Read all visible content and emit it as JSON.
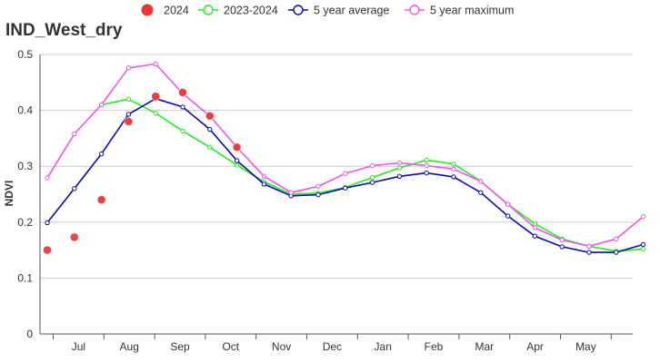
{
  "chart_data": {
    "type": "line",
    "title": "IND_West_dry",
    "ylabel": "NDVI",
    "xlabel": "",
    "ylim": [
      0,
      0.5
    ],
    "yticks": [
      "0",
      "0.1",
      "0.2",
      "0.3",
      "0.4",
      "0.5"
    ],
    "month_labels": [
      "Jul",
      "Aug",
      "Sep",
      "Oct",
      "Nov",
      "Dec",
      "Jan",
      "Feb",
      "Mar",
      "Apr",
      "May"
    ],
    "grid": true,
    "legend_position": "top",
    "series": [
      {
        "name": "2024",
        "style": "dots",
        "color": "#ee3333",
        "values": [
          0.15,
          0.173,
          0.24,
          0.38,
          0.425,
          0.432,
          0.39,
          0.334
        ]
      },
      {
        "name": "2023-2024",
        "style": "line",
        "color": "#22ee22",
        "values": [
          null,
          null,
          0.41,
          0.42,
          0.395,
          0.363,
          0.334,
          0.302,
          0.272,
          0.25,
          0.252,
          0.262,
          0.28,
          0.297,
          0.311,
          0.304,
          0.273,
          0.232,
          0.197,
          0.17,
          0.157,
          0.148,
          0.152
        ]
      },
      {
        "name": "5 year average",
        "style": "line",
        "color": "#0a0aa5",
        "values": [
          0.199,
          0.26,
          0.322,
          0.393,
          0.421,
          0.406,
          0.366,
          0.31,
          0.268,
          0.247,
          0.249,
          0.261,
          0.271,
          0.282,
          0.288,
          0.281,
          0.253,
          0.211,
          0.175,
          0.156,
          0.146,
          0.146,
          0.16
        ]
      },
      {
        "name": "5 year maximum",
        "style": "line",
        "color": "#ee55ee",
        "values": [
          0.279,
          0.358,
          0.41,
          0.476,
          0.483,
          0.43,
          0.39,
          0.334,
          0.282,
          0.253,
          0.264,
          0.287,
          0.301,
          0.306,
          0.301,
          0.295,
          0.273,
          0.232,
          0.19,
          0.168,
          0.157,
          0.17,
          0.21
        ]
      }
    ]
  }
}
